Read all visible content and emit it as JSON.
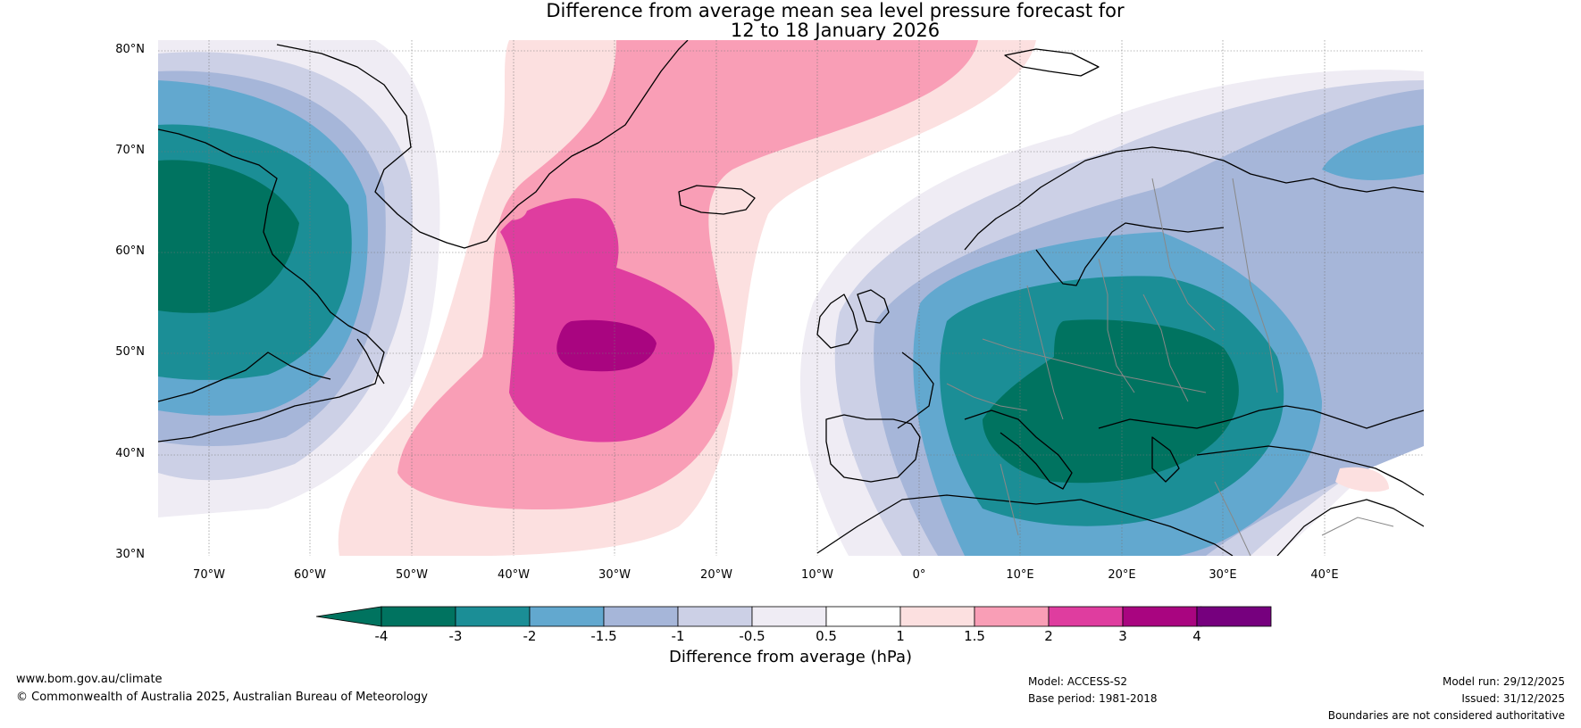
{
  "title": {
    "line1": "Difference from average mean sea level pressure forecast for",
    "line2": "12 to 18 January 2026"
  },
  "map": {
    "lat_labels": [
      "80°N",
      "70°N",
      "60°N",
      "50°N",
      "40°N",
      "30°N"
    ],
    "lon_labels": [
      "70°W",
      "60°W",
      "50°W",
      "40°W",
      "30°W",
      "20°W",
      "10°W",
      "0°",
      "10°E",
      "20°E",
      "30°E",
      "40°E"
    ],
    "anomaly_regions": [
      {
        "name": "Eastern North America low anomaly",
        "max_abs_hPa": 4,
        "sign": "negative"
      },
      {
        "name": "Central North Atlantic high anomaly",
        "max_abs_hPa": 3,
        "sign": "positive"
      },
      {
        "name": "Europe low anomaly",
        "max_abs_hPa": 4,
        "sign": "negative"
      }
    ]
  },
  "colorbar": {
    "ticks": [
      "-4",
      "-3",
      "-2",
      "-1.5",
      "-1",
      "-0.5",
      "0.5",
      "1",
      "1.5",
      "2",
      "3",
      "4"
    ],
    "colors": [
      "#007360",
      "#1b8e96",
      "#62a8cf",
      "#a6b6d9",
      "#ccd0e6",
      "#efecf4",
      "#ffffff",
      "#fce0e0",
      "#f99eb6",
      "#df3d9f",
      "#a90580",
      "#76007e"
    ],
    "under_color": "#00735f",
    "over_color": "#4f006c",
    "label": "Difference from average (hPa)"
  },
  "footer": {
    "website": "www.bom.gov.au/climate",
    "copyright": "© Commonwealth of Australia 2025, Australian Bureau of Meteorology",
    "model": "Model: ACCESS-S2",
    "base_period": "Base period: 1981-2018",
    "model_run": "Model run: 29/12/2025",
    "issued": "Issued: 31/12/2025",
    "disclaimer": "Boundaries are not considered authoritative"
  }
}
